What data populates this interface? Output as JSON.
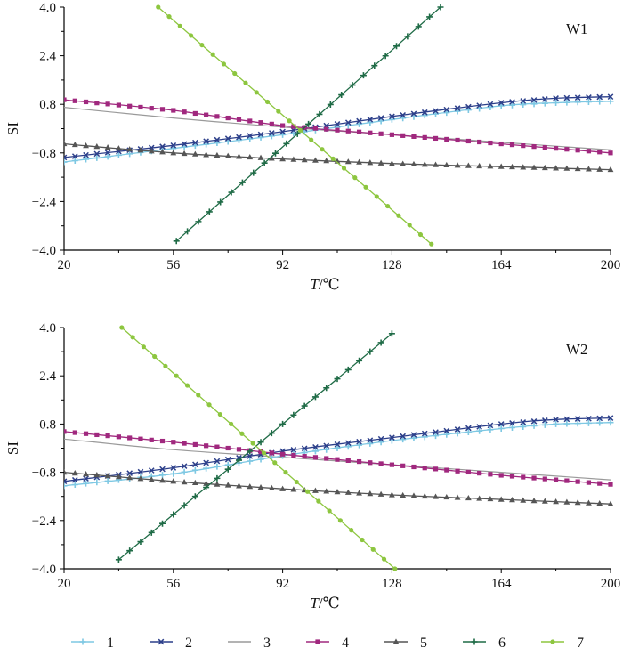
{
  "chart_data": [
    {
      "type": "line",
      "panel_label": "W1",
      "xlabel_italic": "T",
      "xlabel_unit": "/℃",
      "ylabel": "SI",
      "xlim": [
        20,
        200
      ],
      "ylim": [
        -4.0,
        4.0
      ],
      "xticks": [
        20,
        56,
        92,
        128,
        164,
        200
      ],
      "xtick_labels": [
        "20",
        "56",
        "92",
        "128",
        "164",
        "200"
      ],
      "yticks": [
        4.0,
        2.4,
        0.8,
        -0.8,
        -2.4,
        -4.0
      ],
      "ytick_labels": [
        "4.0",
        "2.4",
        "0.8",
        "−0.8",
        "−2.4",
        "−4.0"
      ],
      "series": [
        {
          "name": "1",
          "x": [
            20,
            56,
            92,
            128,
            164,
            182,
            200
          ],
          "y": [
            -1.1,
            -0.65,
            -0.2,
            0.3,
            0.75,
            0.85,
            0.9
          ]
        },
        {
          "name": "2",
          "x": [
            20,
            56,
            92,
            128,
            164,
            182,
            200
          ],
          "y": [
            -0.95,
            -0.55,
            -0.1,
            0.4,
            0.85,
            1.0,
            1.05
          ]
        },
        {
          "name": "3",
          "x": [
            20,
            56,
            92,
            128,
            164,
            200
          ],
          "y": [
            0.7,
            0.35,
            0.05,
            -0.2,
            -0.45,
            -0.7
          ]
        },
        {
          "name": "4",
          "x": [
            20,
            56,
            92,
            128,
            164,
            200
          ],
          "y": [
            0.95,
            0.6,
            0.1,
            -0.2,
            -0.5,
            -0.8
          ]
        },
        {
          "name": "5",
          "x": [
            20,
            56,
            92,
            128,
            164,
            200
          ],
          "y": [
            -0.5,
            -0.8,
            -1.0,
            -1.15,
            -1.25,
            -1.35
          ]
        },
        {
          "name": "6",
          "x": [
            57,
            144
          ],
          "y": [
            -3.7,
            4.0
          ]
        },
        {
          "name": "7",
          "x": [
            51,
            141
          ],
          "y": [
            4.0,
            -3.8
          ]
        }
      ]
    },
    {
      "type": "line",
      "panel_label": "W2",
      "xlabel_italic": "T",
      "xlabel_unit": "/℃",
      "ylabel": "SI",
      "xlim": [
        20,
        200
      ],
      "ylim": [
        -4.0,
        4.0
      ],
      "xticks": [
        20,
        56,
        92,
        128,
        164,
        200
      ],
      "xtick_labels": [
        "20",
        "56",
        "92",
        "128",
        "164",
        "200"
      ],
      "yticks": [
        4.0,
        2.4,
        0.8,
        -0.8,
        -2.4,
        -4.0
      ],
      "ytick_labels": [
        "4.0",
        "2.4",
        "0.8",
        "−0.8",
        "−2.4",
        "−4.0"
      ],
      "series": [
        {
          "name": "1",
          "x": [
            20,
            56,
            92,
            128,
            164,
            182,
            200
          ],
          "y": [
            -1.25,
            -0.85,
            -0.25,
            0.25,
            0.65,
            0.8,
            0.85
          ]
        },
        {
          "name": "2",
          "x": [
            20,
            56,
            92,
            128,
            164,
            182,
            200
          ],
          "y": [
            -1.1,
            -0.65,
            -0.1,
            0.35,
            0.8,
            0.95,
            1.0
          ]
        },
        {
          "name": "3",
          "x": [
            20,
            56,
            92,
            128,
            164,
            200
          ],
          "y": [
            0.3,
            -0.05,
            -0.3,
            -0.55,
            -0.8,
            -1.05
          ]
        },
        {
          "name": "4",
          "x": [
            20,
            56,
            92,
            128,
            164,
            200
          ],
          "y": [
            0.55,
            0.2,
            -0.2,
            -0.55,
            -0.9,
            -1.2
          ]
        },
        {
          "name": "5",
          "x": [
            20,
            56,
            92,
            128,
            164,
            200
          ],
          "y": [
            -0.8,
            -1.1,
            -1.35,
            -1.55,
            -1.7,
            -1.85
          ]
        },
        {
          "name": "6",
          "x": [
            38,
            128
          ],
          "y": [
            -3.7,
            3.8
          ]
        },
        {
          "name": "7",
          "x": [
            39,
            129
          ],
          "y": [
            4.0,
            -4.0
          ]
        }
      ]
    }
  ],
  "legend": [
    {
      "label": "1",
      "color": "#7ec8e3",
      "marker": "plus"
    },
    {
      "label": "2",
      "color": "#2c3f8a",
      "marker": "x"
    },
    {
      "label": "3",
      "color": "#9a9a9a",
      "marker": "none"
    },
    {
      "label": "4",
      "color": "#a0287e",
      "marker": "square"
    },
    {
      "label": "5",
      "color": "#555555",
      "marker": "triangle"
    },
    {
      "label": "6",
      "color": "#1f6b46",
      "marker": "plus"
    },
    {
      "label": "7",
      "color": "#8dc63f",
      "marker": "circle"
    }
  ]
}
